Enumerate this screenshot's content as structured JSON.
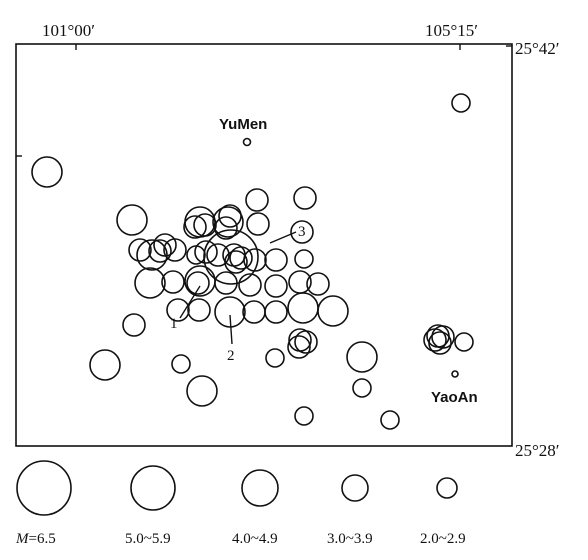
{
  "map": {
    "coords": {
      "top_left": "101°00′",
      "top_right": "105°15′",
      "right_top": "25°42′",
      "right_bottom": "25°28′"
    },
    "towns": [
      {
        "name": "YuMen"
      },
      {
        "name": "YaoAn"
      }
    ],
    "markers": [
      "1",
      "2",
      "3"
    ]
  },
  "legend": {
    "items": [
      {
        "label": "M=6.5",
        "class": "6.5"
      },
      {
        "label": "5.0~5.9",
        "class": "5"
      },
      {
        "label": "4.0~4.9",
        "class": "4"
      },
      {
        "label": "3.0~3.9",
        "class": "3"
      },
      {
        "label": "2.0~2.9",
        "class": "2"
      }
    ]
  }
}
